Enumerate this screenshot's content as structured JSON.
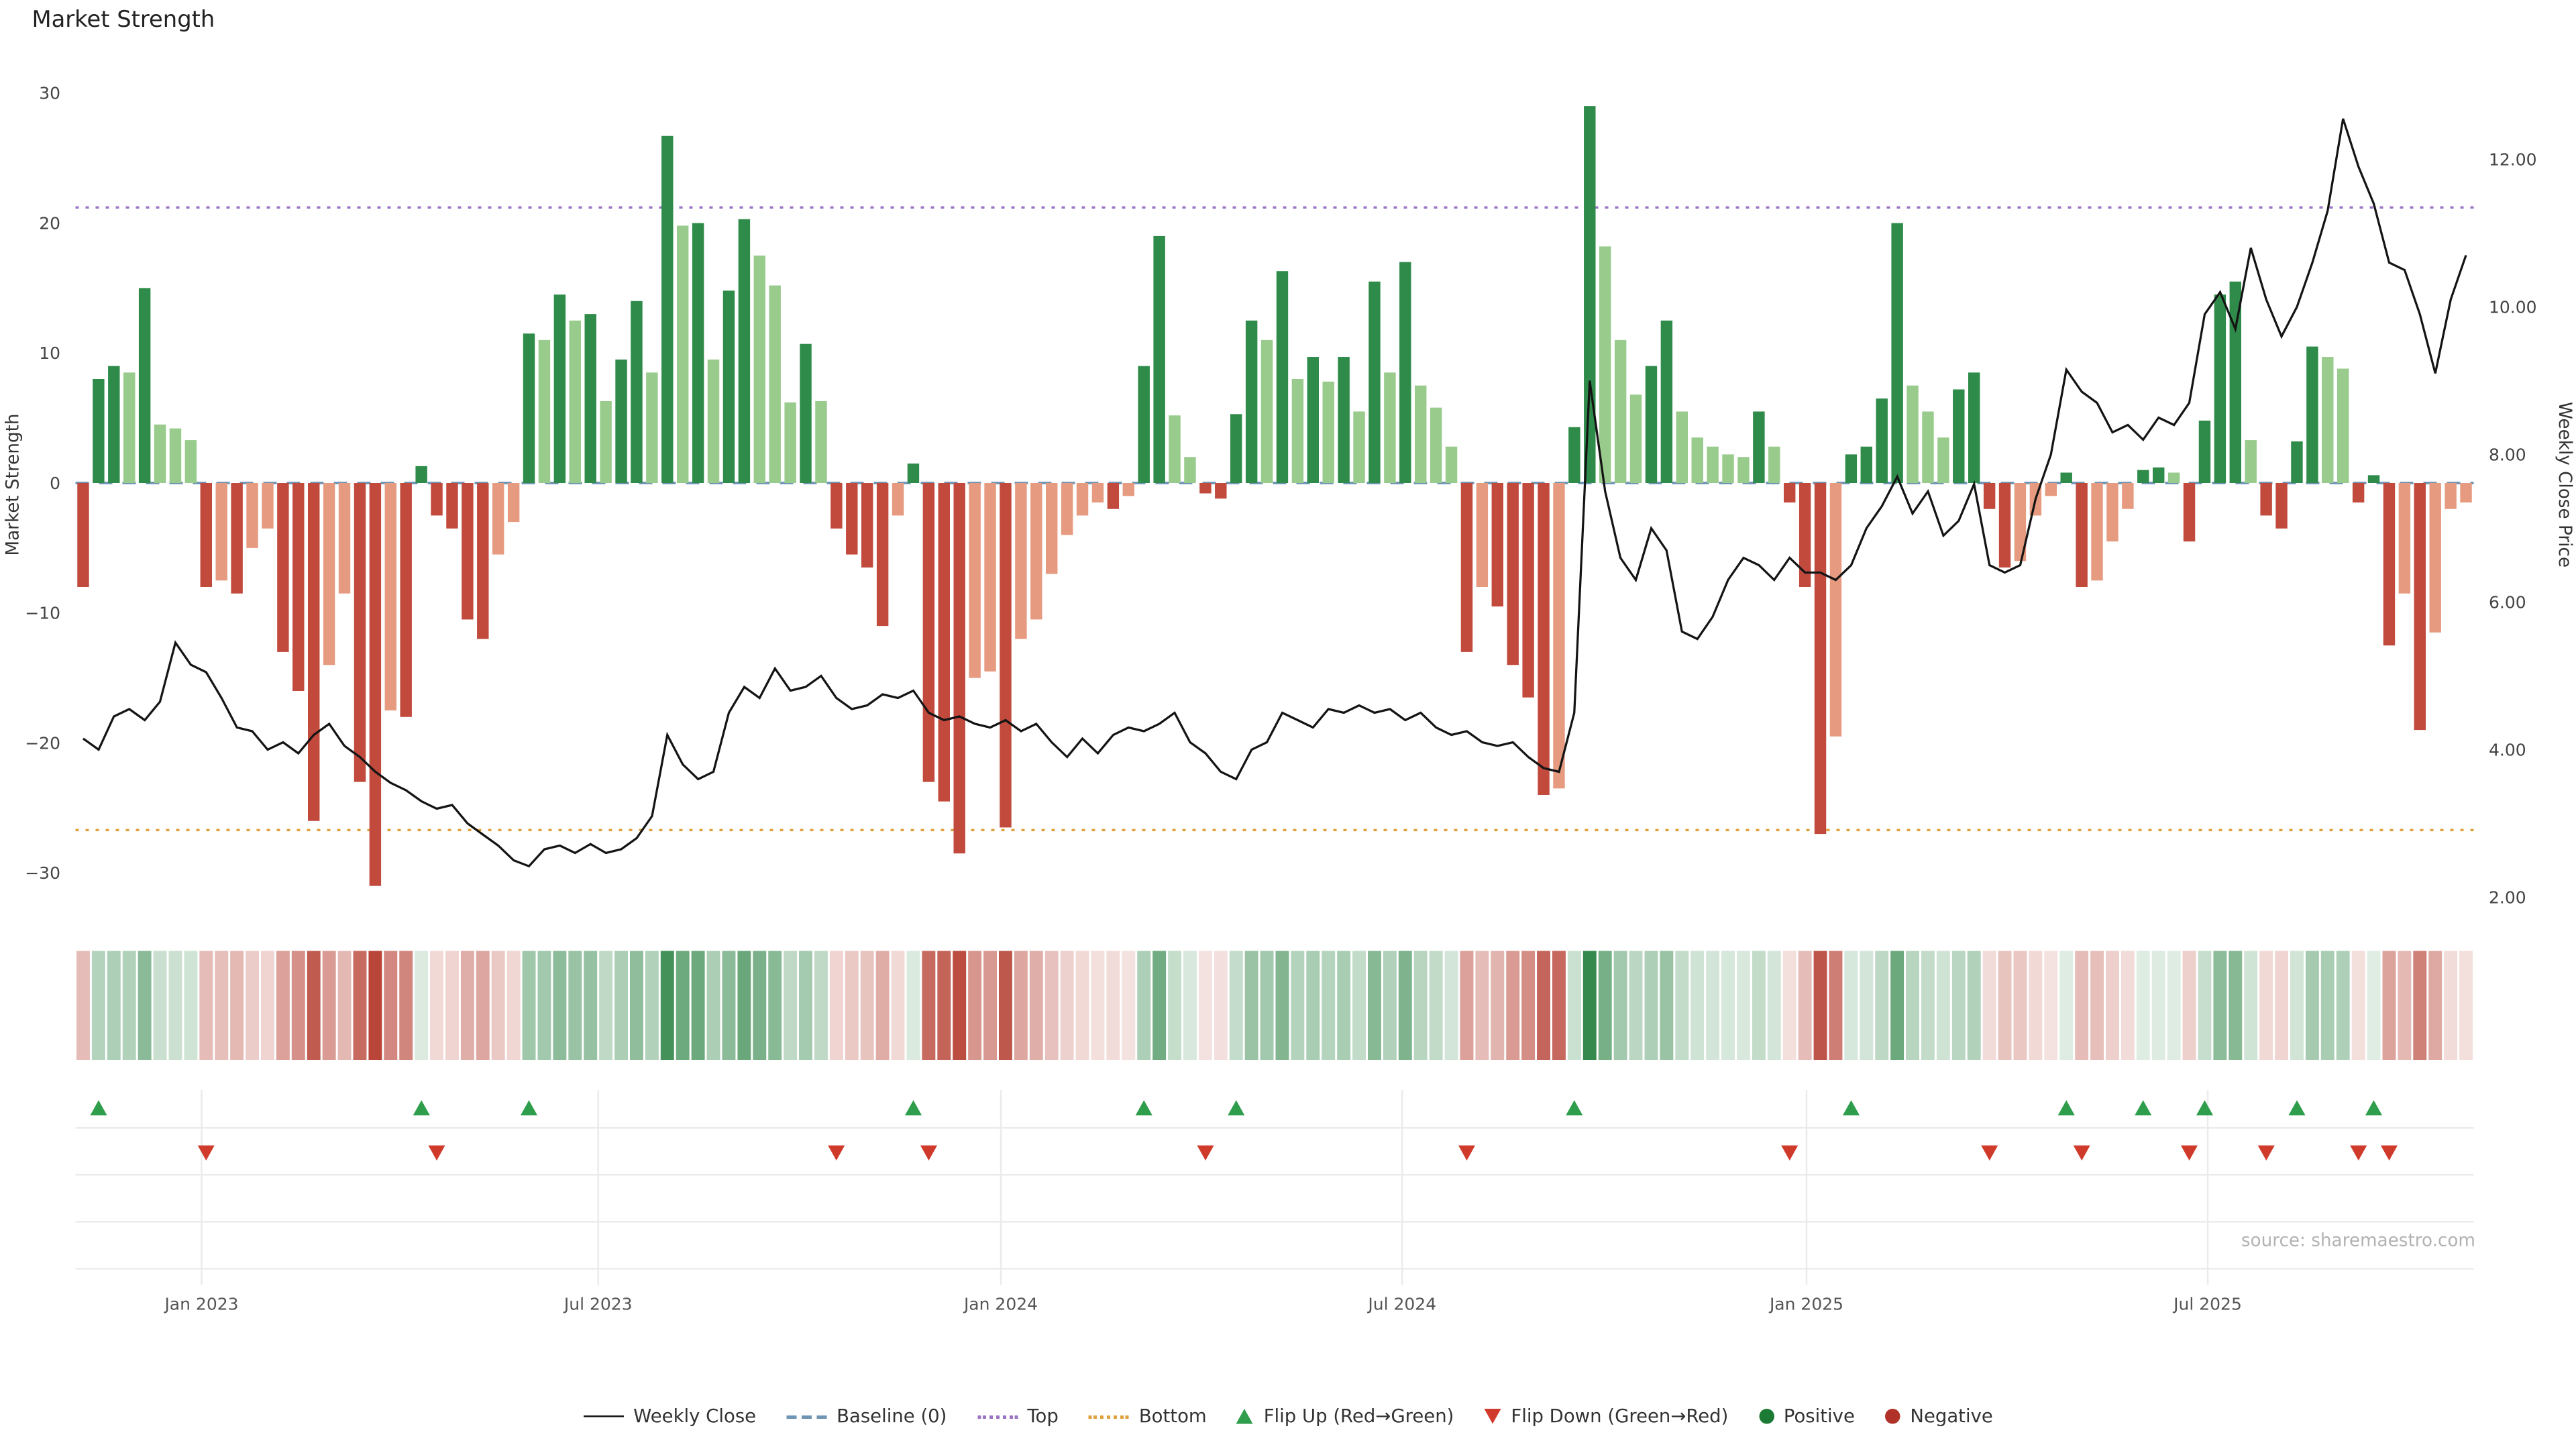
{
  "title": "Market Strength",
  "source": "source: sharemaestro.com",
  "axes": {
    "left_label": "Market Strength",
    "right_label": "Weekly Close Price",
    "left_ticks": [
      30,
      20,
      10,
      0,
      -10,
      -20,
      -30
    ],
    "right_ticks": [
      "12.00",
      "10.00",
      "8.00",
      "6.00",
      "4.00",
      "2.00"
    ],
    "x_ticks": [
      {
        "week": 8.2,
        "label": "Jan 2023"
      },
      {
        "week": 34,
        "label": "Jul 2023"
      },
      {
        "week": 60.2,
        "label": "Jan 2024"
      },
      {
        "week": 86.3,
        "label": "Jul 2024"
      },
      {
        "week": 112.6,
        "label": "Jan 2025"
      },
      {
        "week": 138.7,
        "label": "Jul 2025"
      }
    ]
  },
  "colors": {
    "green_dark": "#2e8b4a",
    "green_light": "#98cb8c",
    "red_dark": "#c14a3d",
    "red_light": "#e69b80",
    "heat_green": "#1e7b38",
    "heat_red": "#b23527",
    "price_line": "#141414",
    "baseline": "#6f95b4",
    "top": "#9b74c6",
    "bottom": "#e0a23e",
    "flip_up": "#2f9e4c",
    "flip_down": "#d03a2a",
    "positive": "#1d7a34",
    "negative": "#b03228"
  },
  "legend": [
    {
      "label": "Weekly Close",
      "swatch": "line",
      "color": "#141414"
    },
    {
      "label": "Baseline (0)",
      "swatch": "dashed-line",
      "color": "#6f95b4"
    },
    {
      "label": "Top",
      "swatch": "dotted-line",
      "color": "#9b74c6"
    },
    {
      "label": "Bottom",
      "swatch": "dotted-line",
      "color": "#e0a23e"
    },
    {
      "label": "Flip Up (Red→Green)",
      "swatch": "triangle-up",
      "color": "#2f9e4c"
    },
    {
      "label": "Flip Down (Green→Red)",
      "swatch": "triangle-down",
      "color": "#d03a2a"
    },
    {
      "label": "Positive",
      "swatch": "circle",
      "color": "#1d7a34"
    },
    {
      "label": "Negative",
      "swatch": "circle",
      "color": "#b03228"
    }
  ],
  "chart_data": {
    "type": "bar+line",
    "title": "Market Strength",
    "x_unit": "week",
    "ylabel_left": "Market Strength",
    "ylabel_right": "Weekly Close Price",
    "ylim_left": [
      -33,
      31
    ],
    "ylim_right": [
      2.0,
      12.6
    ],
    "baseline": 0,
    "top_line": 21.2,
    "bottom_line": -26.7,
    "strength": [
      -8,
      8,
      9,
      8.5,
      15,
      4.5,
      4.2,
      3.3,
      -8,
      -7.5,
      -8.5,
      -5,
      -3.5,
      -13,
      -16,
      -26,
      -14,
      -8.5,
      -23,
      -31,
      -17.5,
      -18,
      1.3,
      -2.5,
      -3.5,
      -10.5,
      -12,
      -5.5,
      -3,
      11.5,
      11,
      14.5,
      12.5,
      13,
      6.3,
      9.5,
      14,
      8.5,
      26.7,
      19.8,
      20,
      9.5,
      14.8,
      20.3,
      17.5,
      15.2,
      6.2,
      10.7,
      6.3,
      -3.5,
      -5.5,
      -6.5,
      -11,
      -2.5,
      1.5,
      -23,
      -24.5,
      -28.5,
      -15,
      -14.5,
      -26.5,
      -12,
      -10.5,
      -7,
      -4,
      -2.5,
      -1.5,
      -2,
      -1,
      9,
      19,
      5.2,
      2,
      -0.8,
      -1.2,
      5.3,
      12.5,
      11,
      16.3,
      8,
      9.7,
      7.8,
      9.7,
      5.5,
      15.5,
      8.5,
      17,
      7.5,
      5.8,
      2.8,
      -13,
      -8,
      -9.5,
      -14,
      -16.5,
      -24,
      -23.5,
      4.3,
      29,
      18.2,
      11,
      6.8,
      9,
      12.5,
      5.5,
      3.5,
      2.8,
      2.2,
      2,
      5.5,
      2.8,
      -1.5,
      -8,
      -27,
      -19.5,
      2.2,
      2.8,
      6.5,
      20,
      7.5,
      5.5,
      3.5,
      7.2,
      8.5,
      -2,
      -6.5,
      -6,
      -2.5,
      -1,
      0.8,
      -8,
      -7.5,
      -4.5,
      -2,
      1,
      1.2,
      0.8,
      -4.5,
      4.8,
      14.5,
      15.5,
      3.3,
      -2.5,
      -3.5,
      3.2,
      10.5,
      9.7,
      8.8,
      -1.5,
      0.6,
      -12.5,
      -8.5,
      -19,
      -11.5,
      -2,
      -1.5
    ],
    "price": [
      4.15,
      4.0,
      4.45,
      4.55,
      4.4,
      4.65,
      5.45,
      5.15,
      5.05,
      4.7,
      4.3,
      4.25,
      4.0,
      4.1,
      3.95,
      4.2,
      4.35,
      4.05,
      3.9,
      3.7,
      3.55,
      3.45,
      3.3,
      3.2,
      3.25,
      3.0,
      2.85,
      2.7,
      2.5,
      2.42,
      2.65,
      2.7,
      2.6,
      2.72,
      2.6,
      2.65,
      2.8,
      3.1,
      4.2,
      3.8,
      3.6,
      3.7,
      4.5,
      4.85,
      4.7,
      5.1,
      4.8,
      4.85,
      5.0,
      4.7,
      4.55,
      4.6,
      4.75,
      4.7,
      4.8,
      4.5,
      4.4,
      4.45,
      4.35,
      4.3,
      4.4,
      4.25,
      4.35,
      4.1,
      3.9,
      4.15,
      3.95,
      4.2,
      4.3,
      4.25,
      4.35,
      4.5,
      4.1,
      3.95,
      3.7,
      3.6,
      4.0,
      4.1,
      4.5,
      4.4,
      4.3,
      4.55,
      4.5,
      4.6,
      4.5,
      4.55,
      4.4,
      4.5,
      4.3,
      4.2,
      4.25,
      4.1,
      4.05,
      4.1,
      3.9,
      3.75,
      3.7,
      4.5,
      9.0,
      7.5,
      6.6,
      6.3,
      7.0,
      6.7,
      5.6,
      5.5,
      5.8,
      6.3,
      6.6,
      6.5,
      6.3,
      6.6,
      6.4,
      6.4,
      6.3,
      6.5,
      7.0,
      7.3,
      7.7,
      7.2,
      7.5,
      6.9,
      7.1,
      7.6,
      6.5,
      6.4,
      6.5,
      7.4,
      8.0,
      9.15,
      8.85,
      8.7,
      8.3,
      8.4,
      8.2,
      8.5,
      8.4,
      8.7,
      9.9,
      10.2,
      9.7,
      10.8,
      10.1,
      9.6,
      10.0,
      10.6,
      11.3,
      12.55,
      11.9,
      11.4,
      10.6,
      10.5,
      9.9,
      9.1,
      10.1,
      10.7
    ],
    "flip_up_weeks": [
      1,
      22,
      29,
      54,
      69,
      75,
      97,
      115,
      129,
      134,
      138,
      144,
      149
    ],
    "flip_down_weeks": [
      8,
      23,
      49,
      55,
      73,
      90,
      111,
      124,
      130,
      137,
      142,
      148,
      150
    ]
  }
}
